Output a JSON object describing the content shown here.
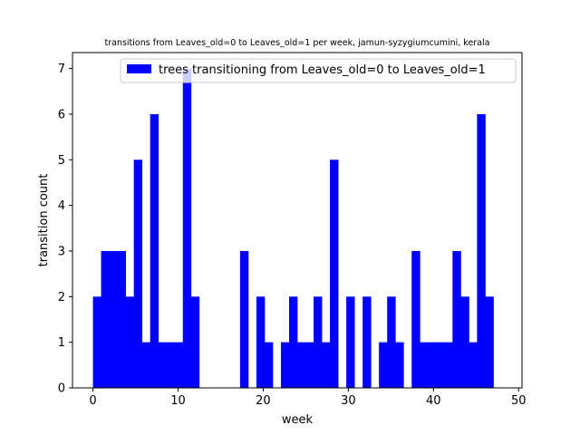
{
  "chart_data": {
    "type": "bar",
    "title": "transitions from Leaves_old=0 to Leaves_old=1 per week, jamun-syzygiumcumini, kerala",
    "xlabel": "week",
    "ylabel": "transition count",
    "xlim": [
      -2.4,
      50.4
    ],
    "ylim": [
      0,
      7.35
    ],
    "xticks": [
      0,
      10,
      20,
      30,
      40,
      50
    ],
    "yticks": [
      0,
      1,
      2,
      3,
      4,
      5,
      6,
      7
    ],
    "bin_width": 0.96,
    "bin_start": 0,
    "series": [
      {
        "name": "trees transitioning from Leaves_old=0 to Leaves_old=1",
        "color": "#0000ff",
        "values": [
          2,
          3,
          3,
          3,
          2,
          5,
          1,
          6,
          1,
          1,
          1,
          7,
          2,
          0,
          0,
          0,
          0,
          0,
          3,
          0,
          2,
          1,
          0,
          1,
          2,
          1,
          1,
          2,
          1,
          5,
          0,
          2,
          0,
          2,
          0,
          1,
          2,
          1,
          0,
          3,
          1,
          1,
          1,
          1,
          3,
          2,
          1,
          6,
          2,
          0
        ]
      }
    ],
    "legend_position": "top-right",
    "grid": false
  }
}
